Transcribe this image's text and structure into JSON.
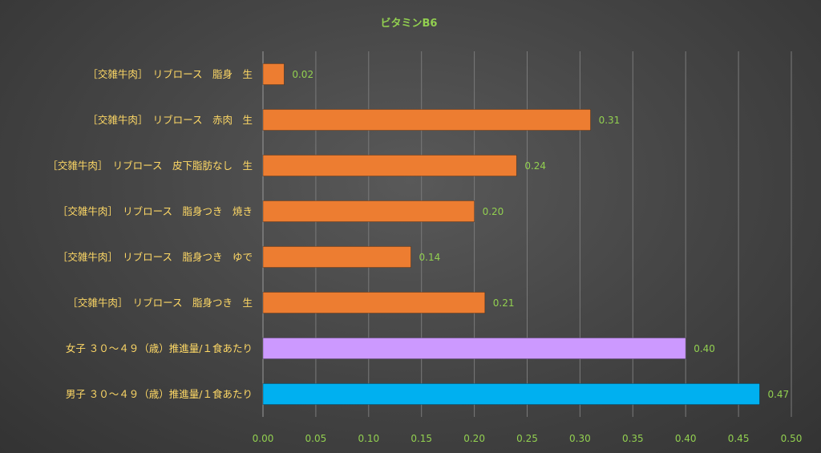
{
  "chart_data": {
    "type": "bar",
    "orientation": "horizontal",
    "title": "ビタミンB6",
    "xlabel": "",
    "ylabel": "",
    "xlim": [
      0,
      0.5
    ],
    "ticks": [
      "0.00",
      "0.05",
      "0.10",
      "0.15",
      "0.20",
      "0.25",
      "0.30",
      "0.35",
      "0.40",
      "0.45",
      "0.50"
    ],
    "grid": "vertical",
    "legend": "none",
    "categories": [
      "［交雑牛肉］　リブロース　脂身　生",
      "［交雑牛肉］　リブロース　赤肉　生",
      "［交雑牛肉］　リブロース　皮下脂肪なし　生",
      "［交雑牛肉］　リブロース　脂身つき　焼き",
      "［交雑牛肉］　リブロース　脂身つき　ゆで",
      "［交雑牛肉］　リブロース　脂身つき　生",
      "女子 ３０～４９（歳）推進量/１食あたり",
      "男子 ３０～４９（歳）推進量/１食あたり"
    ],
    "values": [
      0.02,
      0.31,
      0.24,
      0.2,
      0.14,
      0.21,
      0.4,
      0.47
    ],
    "value_labels": [
      "0.02",
      "0.31",
      "0.24",
      "0.20",
      "0.14",
      "0.21",
      "0.40",
      "0.47"
    ],
    "bar_colors": [
      "#ed7d31",
      "#ed7d31",
      "#ed7d31",
      "#ed7d31",
      "#ed7d31",
      "#ed7d31",
      "#cc99ff",
      "#00b0f0"
    ],
    "colors": {
      "title": "#92d050",
      "category_text": "#ffd966",
      "tick_text": "#92d050",
      "data_label_text": "#92d050",
      "gridline": "#7a7a7a"
    }
  }
}
